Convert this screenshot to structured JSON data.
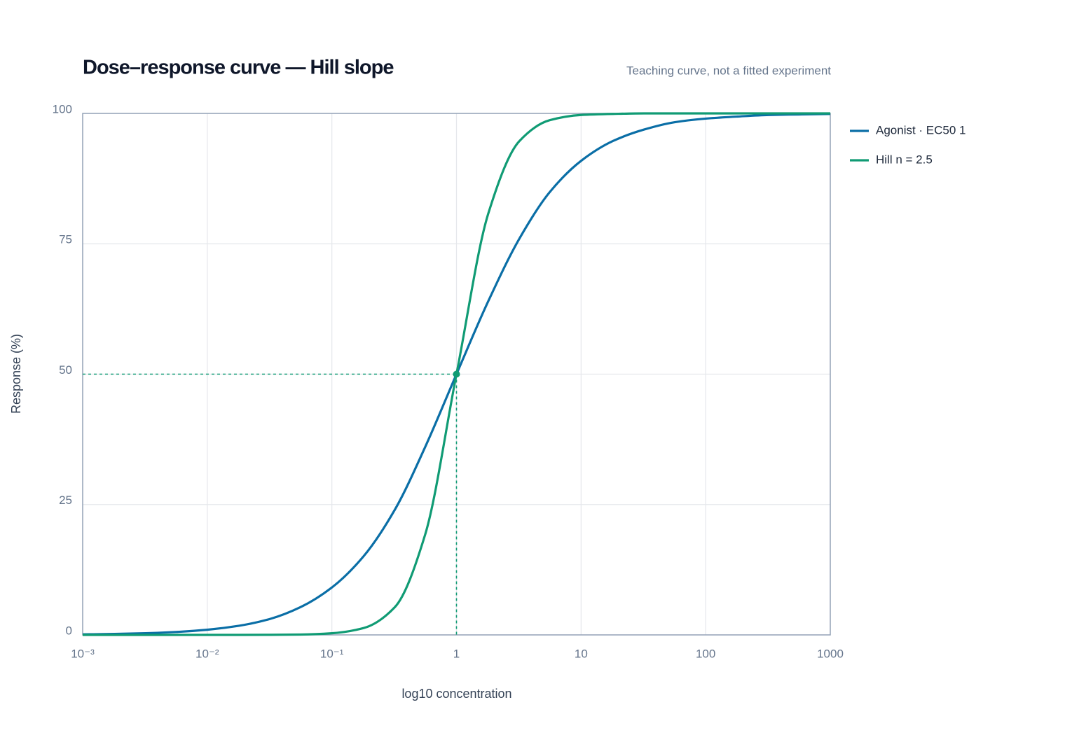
{
  "chart_data": {
    "type": "line",
    "title": "Dose–response curve — Hill slope",
    "subtitle": "Teaching curve, not a fitted experiment",
    "xlabel": "log10 concentration",
    "ylabel": "Response (%)",
    "xscale": "log",
    "grid": true,
    "legend": "right",
    "x": [
      0.001,
      0.0018,
      0.0032,
      0.0056,
      0.01,
      0.018,
      0.032,
      0.056,
      0.1,
      0.18,
      0.32,
      0.56,
      1,
      1.8,
      3.2,
      5.6,
      10,
      18,
      32,
      56,
      100,
      180,
      320,
      560,
      1000
    ],
    "series": [
      {
        "name": "Agonist · EC50 1",
        "color": "#0a6ea6",
        "values": [
          0.1,
          0.18,
          0.32,
          0.56,
          0.99,
          1.75,
          3.07,
          5.32,
          9.09,
          15.1,
          24.0,
          36.0,
          50,
          64.0,
          76.0,
          84.9,
          90.9,
          94.7,
          96.9,
          98.3,
          99.0,
          99.4,
          99.7,
          99.8,
          99.9
        ]
      },
      {
        "name": "Hill n = 2.5",
        "color": "#109b74",
        "values": [
          0,
          0,
          0,
          0,
          0,
          0,
          0.02,
          0.07,
          0.32,
          1.32,
          5.32,
          19.2,
          50,
          80.8,
          94.7,
          98.7,
          99.7,
          99.9,
          100,
          100,
          100,
          100,
          100,
          100,
          100
        ]
      }
    ],
    "marker": {
      "x": 1,
      "y": 50,
      "color": "#109b74"
    },
    "xlim": [
      0.001,
      1000
    ],
    "xticks": [
      {
        "value": 0.001,
        "label": "10⁻³"
      },
      {
        "value": 0.01,
        "label": "10⁻²"
      },
      {
        "value": 0.1,
        "label": "10⁻¹"
      },
      1,
      10,
      100,
      1000
    ],
    "ylim": [
      0,
      100
    ],
    "yticks": [
      0,
      25,
      50,
      75,
      100
    ]
  }
}
